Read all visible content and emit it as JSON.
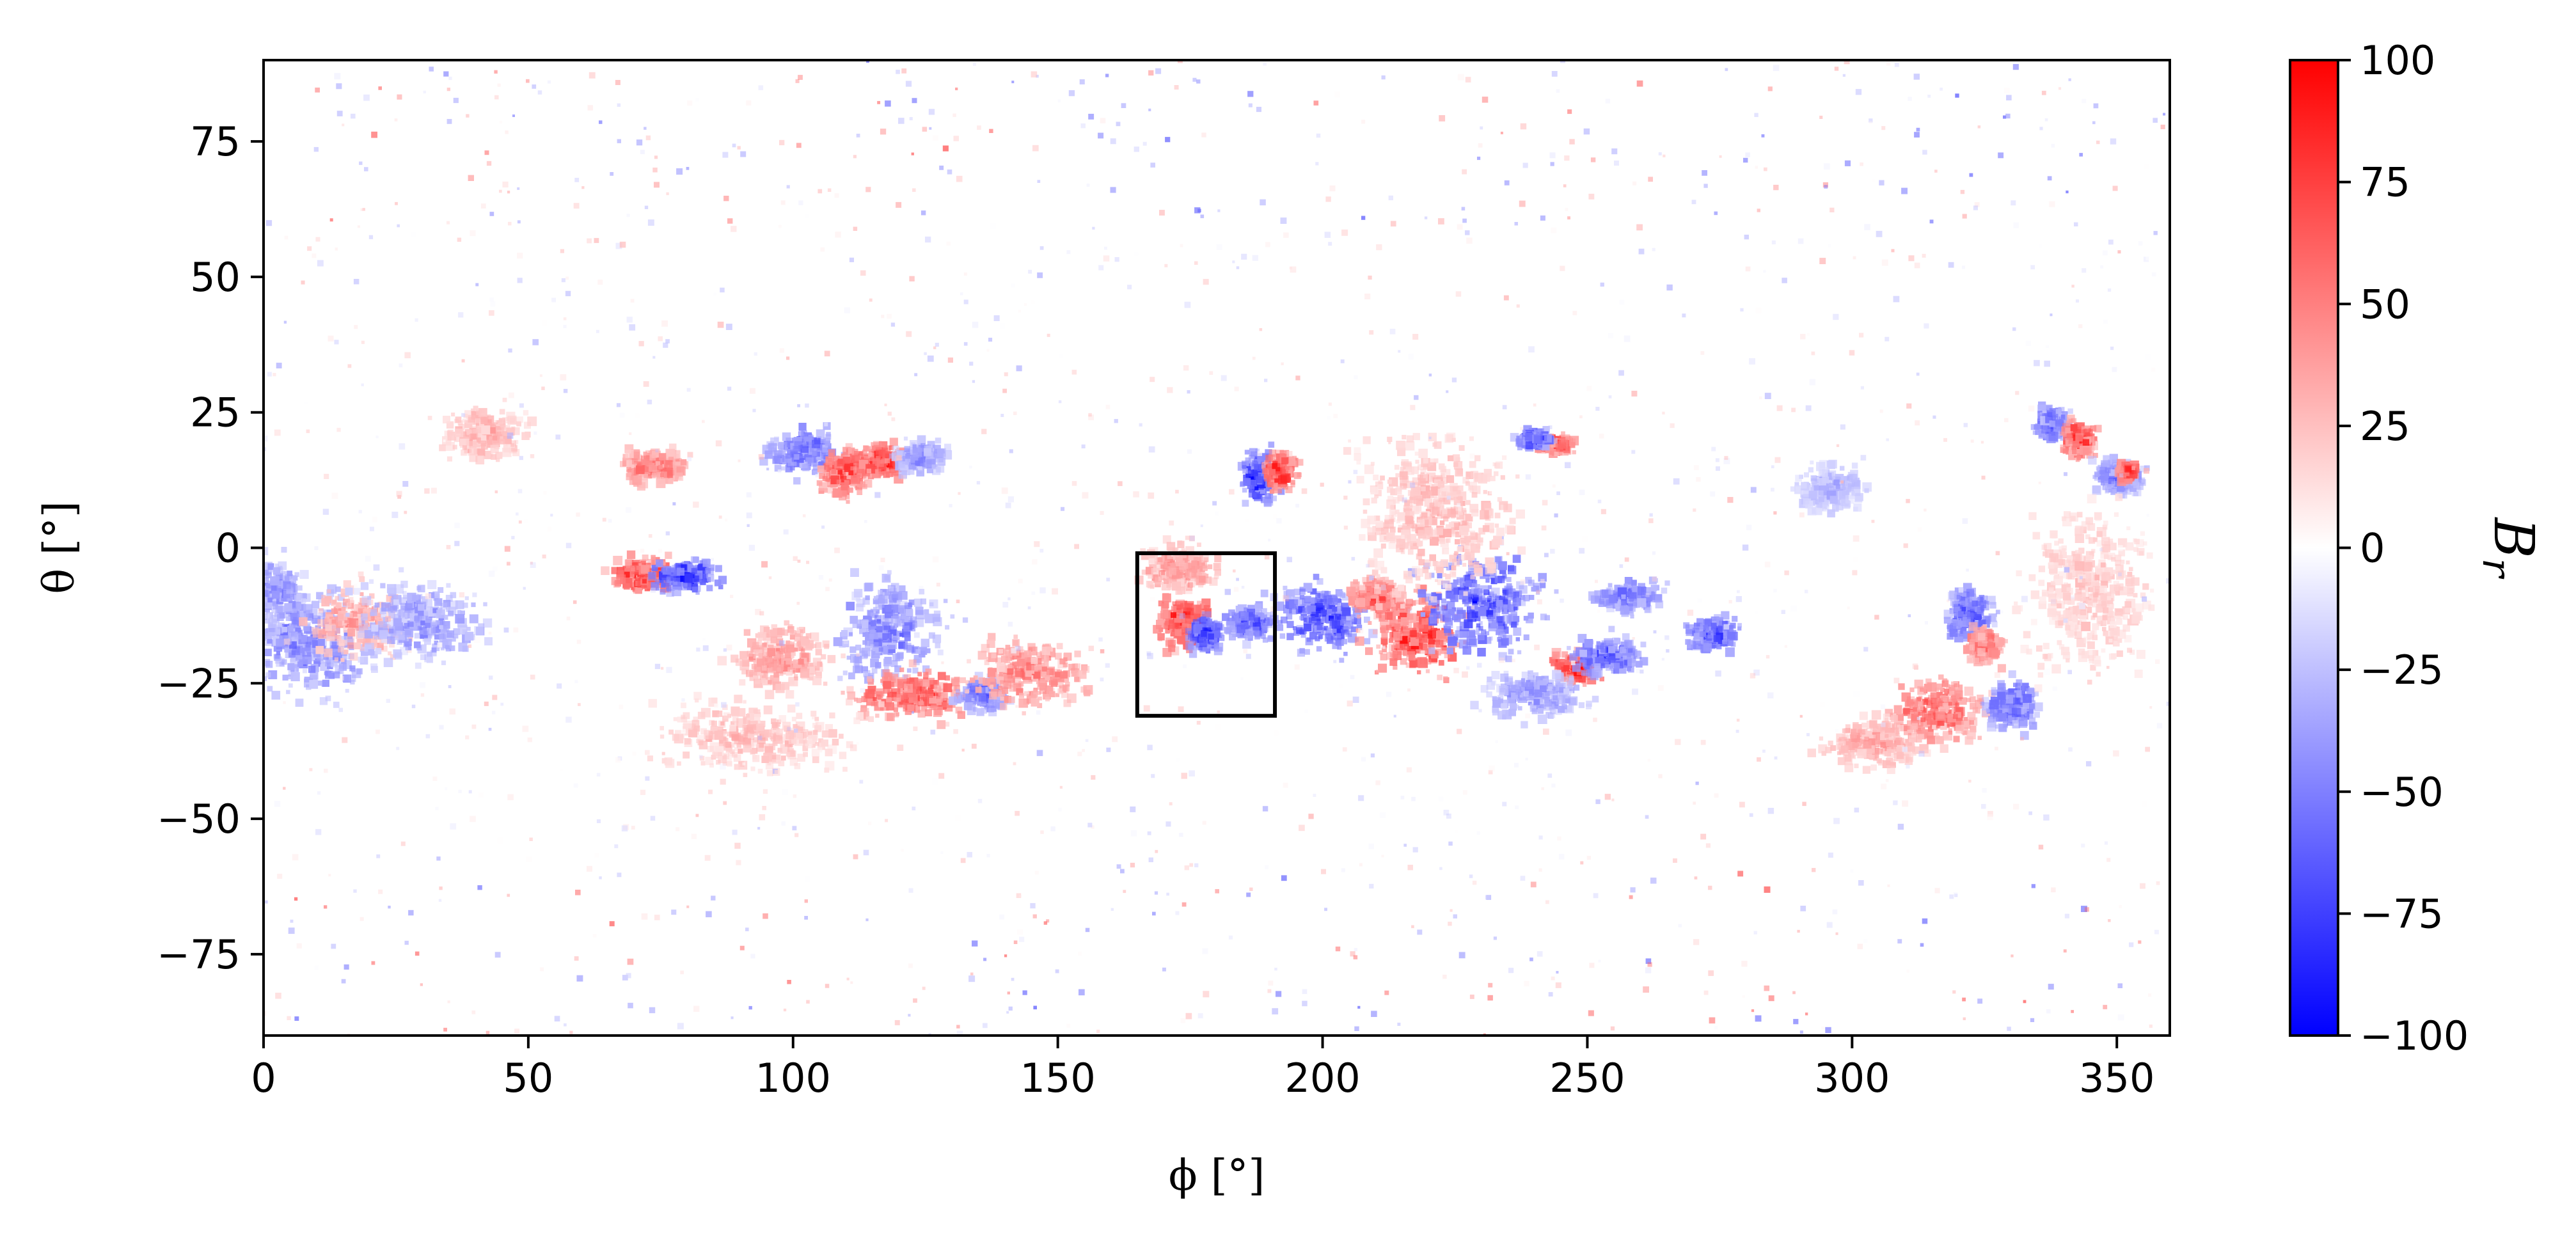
{
  "chart_data": {
    "type": "heatmap",
    "title": "",
    "xlabel": "ϕ [°]",
    "ylabel": "θ [°]",
    "xlim": [
      0,
      360
    ],
    "ylim": [
      -90,
      90
    ],
    "xticks": [
      0,
      50,
      100,
      150,
      200,
      250,
      300,
      350
    ],
    "yticks": [
      -75,
      -50,
      -25,
      0,
      25,
      50,
      75
    ],
    "xtick_labels": [
      "0",
      "50",
      "100",
      "150",
      "200",
      "250",
      "300",
      "350"
    ],
    "ytick_labels": [
      "−75",
      "−50",
      "−25",
      "0",
      "25",
      "50",
      "75"
    ],
    "grid": false,
    "colorbar": {
      "label": "B_r",
      "label_main": "B",
      "label_sub": "r",
      "cmap": "bwr",
      "range": [
        -100,
        100
      ],
      "ticks": [
        -100,
        -75,
        -50,
        -25,
        0,
        25,
        50,
        75,
        100
      ],
      "tick_labels": [
        "−100",
        "−75",
        "−50",
        "−25",
        "0",
        "25",
        "50",
        "75",
        "100"
      ],
      "color_low": "#0000ff",
      "color_mid": "#ffffff",
      "color_high": "#ff0000"
    },
    "regions": [
      {
        "phi": 8,
        "theta": -18,
        "spread_phi": 8,
        "spread_theta": 6,
        "value": -55
      },
      {
        "phi": 18,
        "theta": -14,
        "spread_phi": 6,
        "spread_theta": 4,
        "value": 45
      },
      {
        "phi": 30,
        "theta": -14,
        "spread_phi": 8,
        "spread_theta": 5,
        "value": -45
      },
      {
        "phi": 2,
        "theta": -8,
        "spread_phi": 4,
        "spread_theta": 4,
        "value": -50
      },
      {
        "phi": 42,
        "theta": 21,
        "spread_phi": 5,
        "spread_theta": 3,
        "value": 35
      },
      {
        "phi": 72,
        "theta": -5,
        "spread_phi": 4,
        "spread_theta": 2,
        "value": 85
      },
      {
        "phi": 80,
        "theta": -5,
        "spread_phi": 4,
        "spread_theta": 2,
        "value": -90
      },
      {
        "phi": 74,
        "theta": 15,
        "spread_phi": 4,
        "spread_theta": 2,
        "value": 60
      },
      {
        "phi": 102,
        "theta": 18,
        "spread_phi": 4,
        "spread_theta": 3,
        "value": -65
      },
      {
        "phi": 110,
        "theta": 14,
        "spread_phi": 3,
        "spread_theta": 3,
        "value": 75
      },
      {
        "phi": 117,
        "theta": 16,
        "spread_phi": 3,
        "spread_theta": 2,
        "value": 90
      },
      {
        "phi": 124,
        "theta": 17,
        "spread_phi": 3,
        "spread_theta": 2,
        "value": -50
      },
      {
        "phi": 98,
        "theta": -20,
        "spread_phi": 6,
        "spread_theta": 4,
        "value": 45
      },
      {
        "phi": 118,
        "theta": -15,
        "spread_phi": 6,
        "spread_theta": 6,
        "value": -55
      },
      {
        "phi": 122,
        "theta": -27,
        "spread_phi": 7,
        "spread_theta": 3,
        "value": 75
      },
      {
        "phi": 136,
        "theta": -27,
        "spread_phi": 3,
        "spread_theta": 2,
        "value": -65
      },
      {
        "phi": 145,
        "theta": -23,
        "spread_phi": 7,
        "spread_theta": 4,
        "value": 55
      },
      {
        "phi": 92,
        "theta": -35,
        "spread_phi": 12,
        "spread_theta": 4,
        "value": 30
      },
      {
        "phi": 174,
        "theta": -14,
        "spread_phi": 3,
        "spread_theta": 3,
        "value": 95
      },
      {
        "phi": 178,
        "theta": -16,
        "spread_phi": 2,
        "spread_theta": 2,
        "value": -95
      },
      {
        "phi": 186,
        "theta": -14,
        "spread_phi": 3,
        "spread_theta": 2,
        "value": -75
      },
      {
        "phi": 173,
        "theta": -4,
        "spread_phi": 5,
        "spread_theta": 3,
        "value": 45
      },
      {
        "phi": 188,
        "theta": 13,
        "spread_phi": 2,
        "spread_theta": 3,
        "value": -95
      },
      {
        "phi": 192,
        "theta": 14,
        "spread_phi": 2,
        "spread_theta": 2,
        "value": 95
      },
      {
        "phi": 200,
        "theta": -13,
        "spread_phi": 6,
        "spread_theta": 4,
        "value": -80
      },
      {
        "phi": 210,
        "theta": -9,
        "spread_phi": 3,
        "spread_theta": 2,
        "value": 70
      },
      {
        "phi": 218,
        "theta": -16,
        "spread_phi": 6,
        "spread_theta": 5,
        "value": 80
      },
      {
        "phi": 230,
        "theta": -10,
        "spread_phi": 8,
        "spread_theta": 6,
        "value": -80
      },
      {
        "phi": 222,
        "theta": 6,
        "spread_phi": 10,
        "spread_theta": 10,
        "value": 30
      },
      {
        "phi": 244,
        "theta": 19,
        "spread_phi": 2,
        "spread_theta": 1,
        "value": 85
      },
      {
        "phi": 240,
        "theta": 20,
        "spread_phi": 2,
        "spread_theta": 1,
        "value": -85
      },
      {
        "phi": 248,
        "theta": -22,
        "spread_phi": 3,
        "spread_theta": 2,
        "value": 90
      },
      {
        "phi": 254,
        "theta": -20,
        "spread_phi": 4,
        "spread_theta": 2,
        "value": -75
      },
      {
        "phi": 240,
        "theta": -27,
        "spread_phi": 6,
        "spread_theta": 3,
        "value": -45
      },
      {
        "phi": 258,
        "theta": -9,
        "spread_phi": 4,
        "spread_theta": 2,
        "value": -60
      },
      {
        "phi": 274,
        "theta": -16,
        "spread_phi": 3,
        "spread_theta": 2,
        "value": -80
      },
      {
        "phi": 296,
        "theta": 11,
        "spread_phi": 4,
        "spread_theta": 3,
        "value": -35
      },
      {
        "phi": 316,
        "theta": -30,
        "spread_phi": 6,
        "spread_theta": 4,
        "value": 65
      },
      {
        "phi": 322,
        "theta": -12,
        "spread_phi": 3,
        "spread_theta": 3,
        "value": -75
      },
      {
        "phi": 325,
        "theta": -18,
        "spread_phi": 2,
        "spread_theta": 2,
        "value": 65
      },
      {
        "phi": 330,
        "theta": -29,
        "spread_phi": 3,
        "spread_theta": 3,
        "value": -70
      },
      {
        "phi": 304,
        "theta": -36,
        "spread_phi": 6,
        "spread_theta": 3,
        "value": 40
      },
      {
        "phi": 338,
        "theta": 23,
        "spread_phi": 2,
        "spread_theta": 2,
        "value": -70
      },
      {
        "phi": 343,
        "theta": 20,
        "spread_phi": 2,
        "spread_theta": 2,
        "value": 90
      },
      {
        "phi": 350,
        "theta": 13,
        "spread_phi": 3,
        "spread_theta": 2,
        "value": -55
      },
      {
        "phi": 352,
        "theta": 14,
        "spread_phi": 1,
        "spread_theta": 1,
        "value": 90
      },
      {
        "phi": 345,
        "theta": -8,
        "spread_phi": 8,
        "spread_theta": 10,
        "value": 25
      }
    ],
    "annotation_box": {
      "phi_range": [
        165,
        191
      ],
      "theta_range": [
        -31,
        -1
      ]
    }
  }
}
